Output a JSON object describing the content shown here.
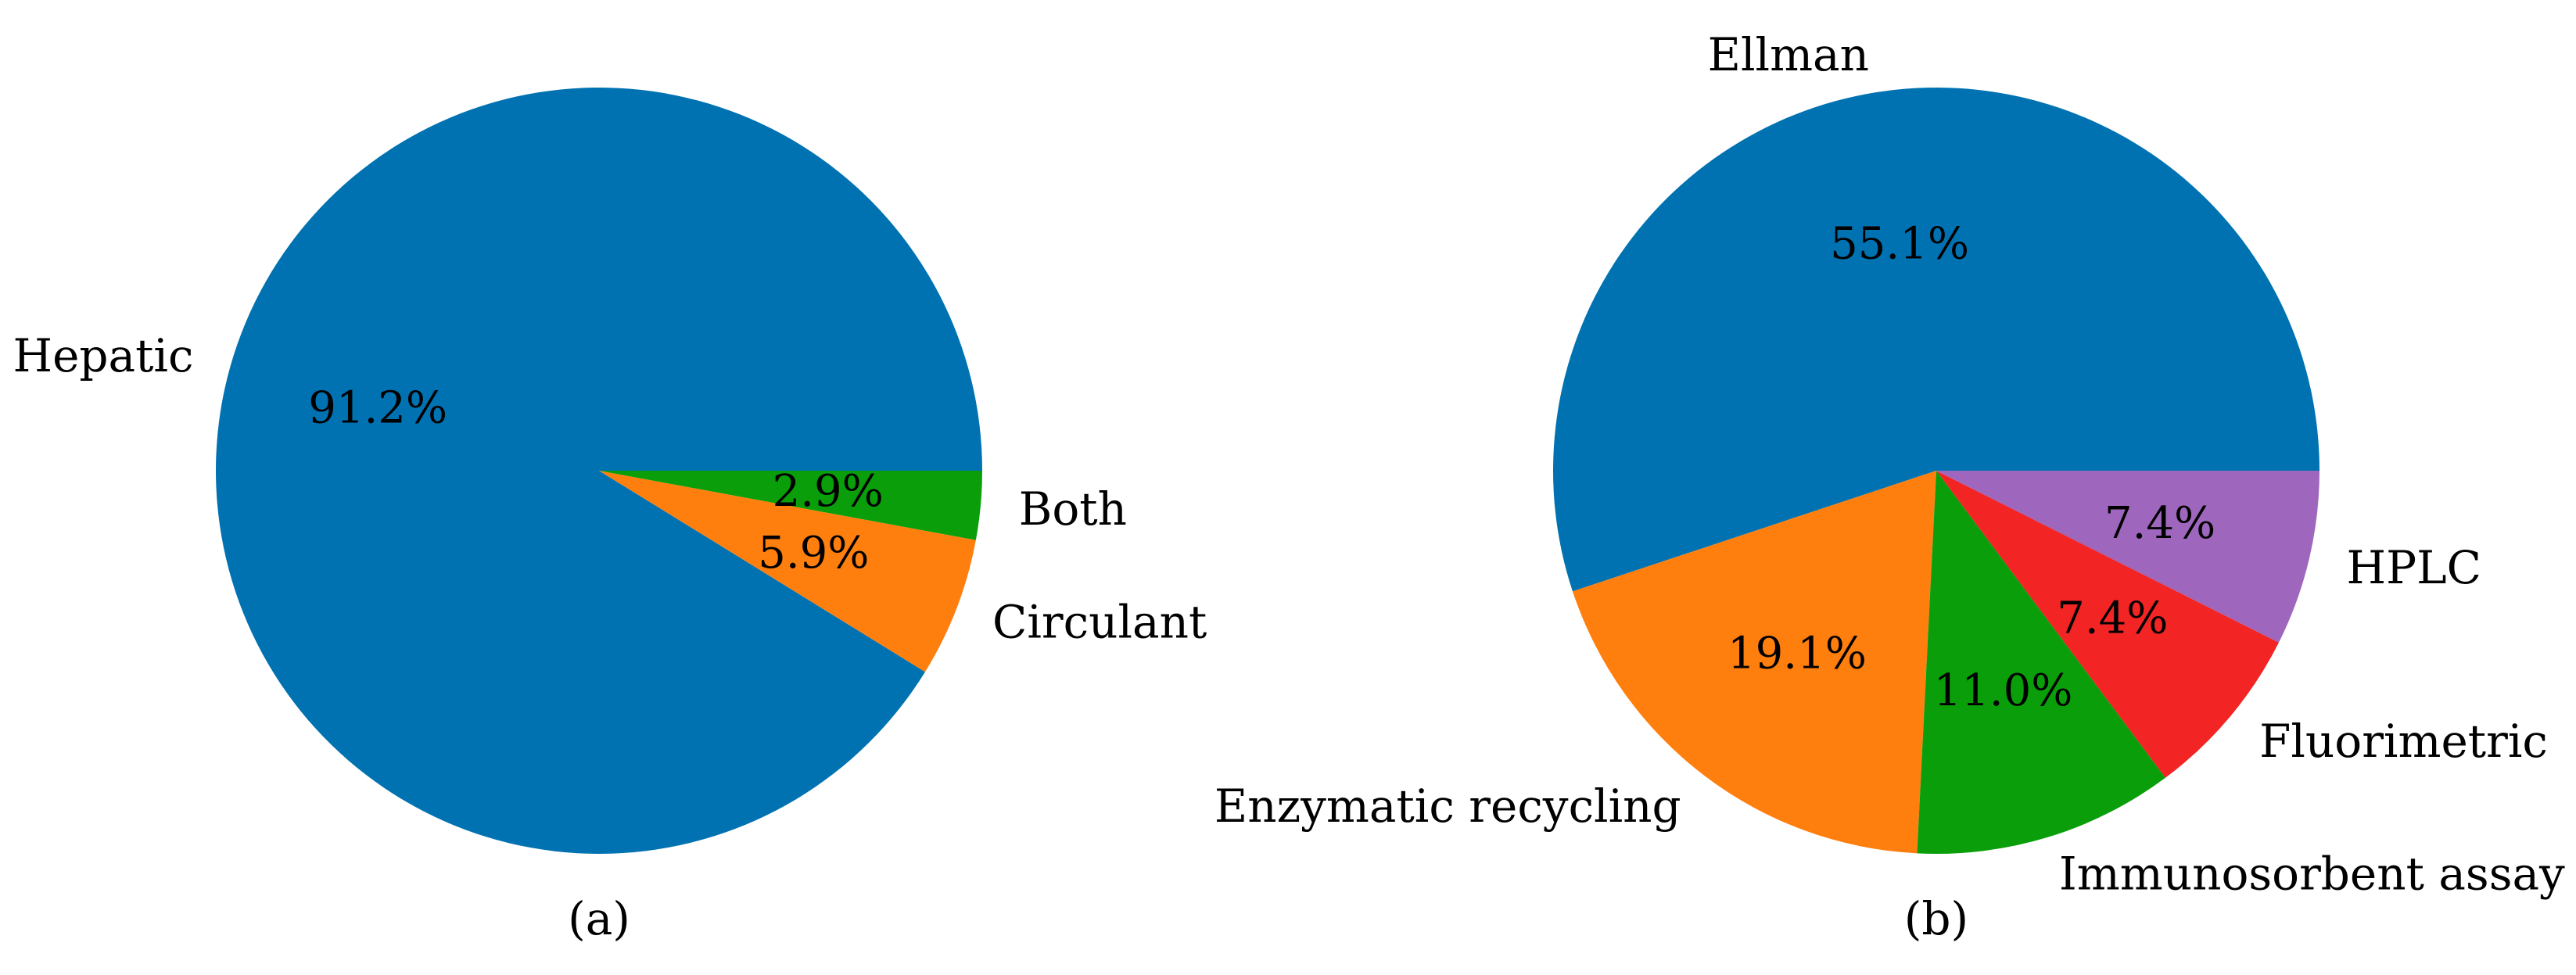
{
  "chart_data": [
    {
      "type": "pie",
      "caption": "(a)",
      "slices": [
        {
          "label": "Hepatic",
          "value": 91.2,
          "pct_label": "91.2%",
          "color": "#0072b2"
        },
        {
          "label": "Circulant",
          "value": 5.9,
          "pct_label": "5.9%",
          "color": "#ff7f0e"
        },
        {
          "label": "Both",
          "value": 2.9,
          "pct_label": "2.9%",
          "color": "#0a9e0a"
        }
      ]
    },
    {
      "type": "pie",
      "caption": "(b)",
      "slices": [
        {
          "label": "Ellman",
          "value": 55.1,
          "pct_label": "55.1%",
          "color": "#0072b2"
        },
        {
          "label": "Enzymatic recycling",
          "value": 19.1,
          "pct_label": "19.1%",
          "color": "#ff7f0e"
        },
        {
          "label": "Immunosorbent assay",
          "value": 11.0,
          "pct_label": "11.0%",
          "color": "#0a9e0a"
        },
        {
          "label": "Fluorimetric",
          "value": 7.4,
          "pct_label": "7.4%",
          "color": "#f22424"
        },
        {
          "label": "HPLC",
          "value": 7.4,
          "pct_label": "7.4%",
          "color": "#9e67bd"
        }
      ]
    }
  ]
}
